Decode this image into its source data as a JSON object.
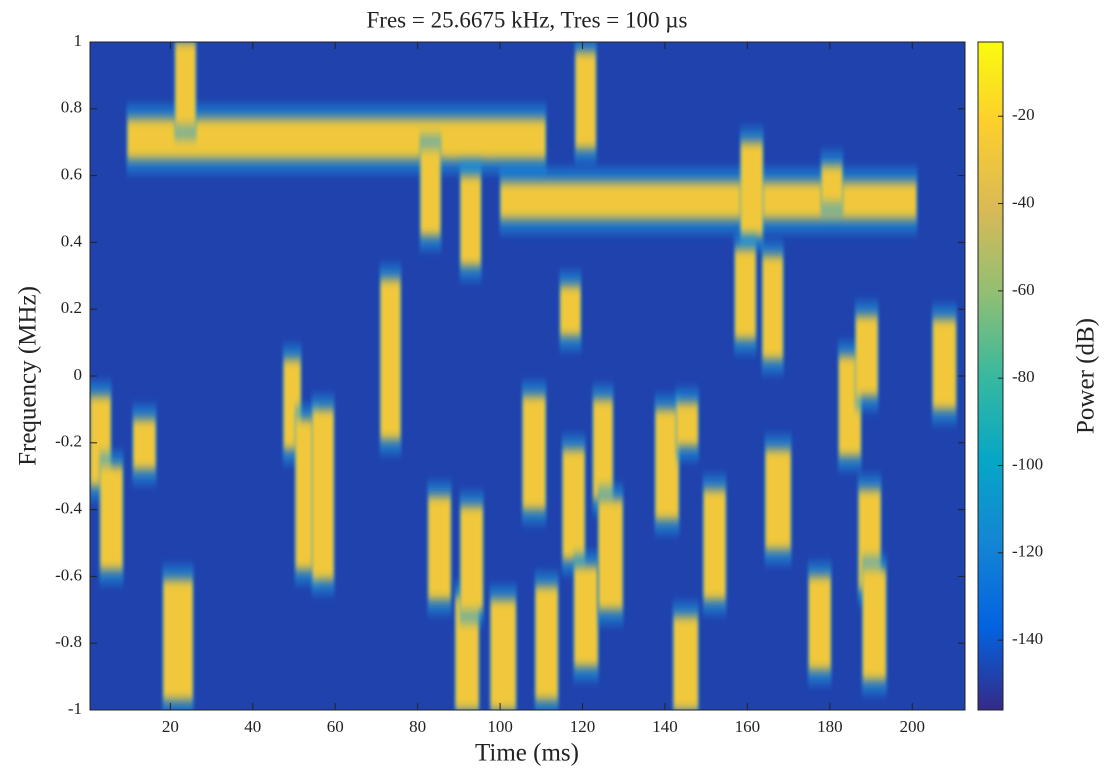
{
  "chart_data": {
    "type": "spectrogram",
    "title": "Fres = 25.6675 kHz, Tres = 100 µs",
    "x_label": "Time (ms)",
    "y_label": "Frequency (MHz)",
    "colorbar_label": "Power (dB)",
    "xlim": [
      0.5,
      212.8
    ],
    "xticks": [
      20,
      40,
      60,
      80,
      100,
      120,
      140,
      160,
      180,
      200
    ],
    "ylim": [
      -1,
      1
    ],
    "yticks": [
      1,
      0.8,
      0.6,
      0.4,
      0.2,
      0,
      -0.2,
      -0.4,
      -0.6,
      -0.8,
      -1
    ],
    "clim": [
      -156,
      -3
    ],
    "cticks": [
      -20,
      -40,
      -60,
      -80,
      -100,
      -120,
      -140
    ],
    "colormap": "parula",
    "background_power": -148,
    "bursts": [
      {
        "t": [
          9.6,
          111
        ],
        "f": [
          0.65,
          0.77
        ],
        "power": -28
      },
      {
        "t": [
          100.1,
          201
        ],
        "f": [
          0.47,
          0.58
        ],
        "power": -28
      },
      {
        "t": [
          21.2,
          26.1
        ],
        "f": [
          0.75,
          1
        ],
        "power": -28
      },
      {
        "t": [
          80.7,
          85.5
        ],
        "f": [
          0.42,
          0.68
        ],
        "power": -28
      },
      {
        "t": [
          90.4,
          95.3
        ],
        "f": [
          0.33,
          0.6
        ],
        "power": -28
      },
      {
        "t": [
          118.3,
          123.2
        ],
        "f": [
          0.68,
          0.97
        ],
        "power": -28
      },
      {
        "t": [
          158.4,
          163.7
        ],
        "f": [
          0.42,
          0.7
        ],
        "power": -28
      },
      {
        "t": [
          178,
          183
        ],
        "f": [
          0.52,
          0.63
        ],
        "power": -28
      },
      {
        "t": [
          157,
          162
        ],
        "f": [
          0.11,
          0.38
        ],
        "power": -28
      },
      {
        "t": [
          163.7,
          168.6
        ],
        "f": [
          0.05,
          0.36
        ],
        "power": -28
      },
      {
        "t": [
          114.6,
          119.5
        ],
        "f": [
          0.12,
          0.27
        ],
        "power": -28
      },
      {
        "t": [
          71,
          75.8
        ],
        "f": [
          -0.19,
          0.29
        ],
        "power": -28
      },
      {
        "t": [
          47.5,
          51.6
        ],
        "f": [
          -0.22,
          0.05
        ],
        "power": -28
      },
      {
        "t": [
          50.4,
          56
        ],
        "f": [
          -0.58,
          -0.13
        ],
        "power": -28
      },
      {
        "t": [
          54.5,
          59.6
        ],
        "f": [
          -0.61,
          -0.1
        ],
        "power": -28
      },
      {
        "t": [
          0.6,
          5.5
        ],
        "f": [
          -0.33,
          -0.06
        ],
        "power": -28
      },
      {
        "t": [
          3,
          8.4
        ],
        "f": [
          -0.58,
          -0.27
        ],
        "power": -28
      },
      {
        "t": [
          11,
          16.4
        ],
        "f": [
          -0.28,
          -0.13
        ],
        "power": -28
      },
      {
        "t": [
          18.3,
          25.4
        ],
        "f": [
          -0.97,
          -0.61
        ],
        "power": -28
      },
      {
        "t": [
          82.6,
          88
        ],
        "f": [
          -0.67,
          -0.36
        ],
        "power": -28
      },
      {
        "t": [
          89.2,
          94.8
        ],
        "f": [
          -1,
          -0.66
        ],
        "power": -28
      },
      {
        "t": [
          90.4,
          95.8
        ],
        "f": [
          -0.7,
          -0.39
        ],
        "power": -28
      },
      {
        "t": [
          97.7,
          103.8
        ],
        "f": [
          -1,
          -0.67
        ],
        "power": -28
      },
      {
        "t": [
          108.6,
          114
        ],
        "f": [
          -0.97,
          -0.63
        ],
        "power": -28
      },
      {
        "t": [
          105.5,
          111
        ],
        "f": [
          -0.4,
          -0.06
        ],
        "power": -28
      },
      {
        "t": [
          115.2,
          120.5
        ],
        "f": [
          -0.55,
          -0.22
        ],
        "power": -28
      },
      {
        "t": [
          118,
          123.7
        ],
        "f": [
          -0.87,
          -0.57
        ],
        "power": -28
      },
      {
        "t": [
          122.6,
          127.3
        ],
        "f": [
          -0.37,
          -0.07
        ],
        "power": -28
      },
      {
        "t": [
          123.9,
          129.7
        ],
        "f": [
          -0.7,
          -0.37
        ],
        "power": -28
      },
      {
        "t": [
          137.7,
          143.3
        ],
        "f": [
          -0.43,
          -0.1
        ],
        "power": -28
      },
      {
        "t": [
          142.8,
          148
        ],
        "f": [
          -0.21,
          -0.08
        ],
        "power": -28
      },
      {
        "t": [
          142.1,
          148
        ],
        "f": [
          -1,
          -0.72
        ],
        "power": -28
      },
      {
        "t": [
          149.4,
          154.7
        ],
        "f": [
          -0.67,
          -0.34
        ],
        "power": -28
      },
      {
        "t": [
          164.4,
          170.5
        ],
        "f": [
          -0.52,
          -0.22
        ],
        "power": -28
      },
      {
        "t": [
          174.9,
          180.2
        ],
        "f": [
          -0.88,
          -0.6
        ],
        "power": -28
      },
      {
        "t": [
          182.2,
          187.5
        ],
        "f": [
          -0.24,
          0.06
        ],
        "power": -28
      },
      {
        "t": [
          186.3,
          191.6
        ],
        "f": [
          -0.06,
          0.18
        ],
        "power": -28
      },
      {
        "t": [
          187,
          192.3
        ],
        "f": [
          -0.64,
          -0.34
        ],
        "power": -28
      },
      {
        "t": [
          188,
          193.6
        ],
        "f": [
          -0.91,
          -0.58
        ],
        "power": -28
      },
      {
        "t": [
          205,
          210.6
        ],
        "f": [
          -0.1,
          0.17
        ],
        "power": -28
      }
    ]
  }
}
